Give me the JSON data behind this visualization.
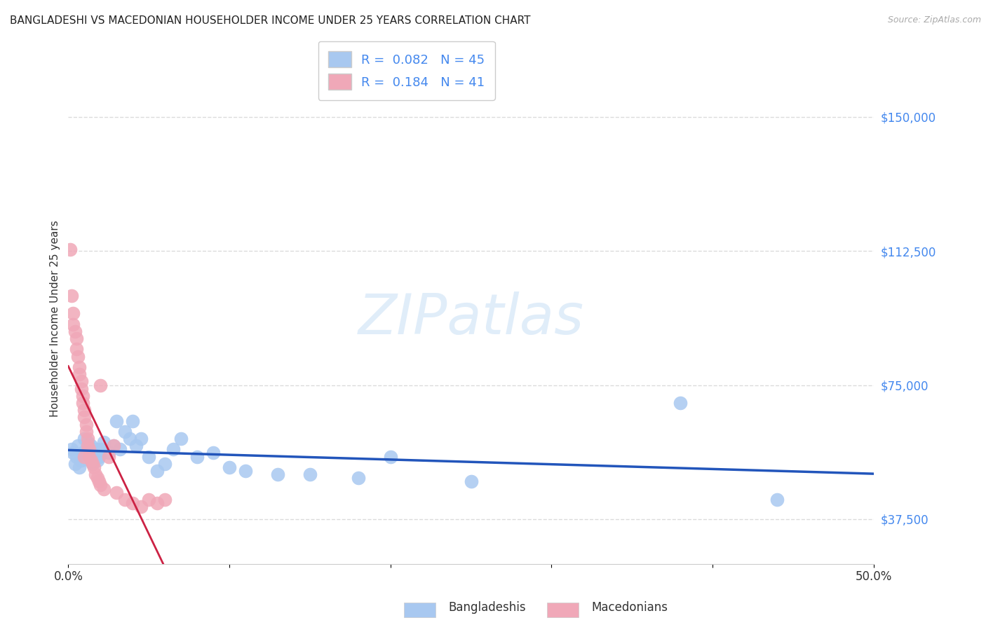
{
  "title": "BANGLADESHI VS MACEDONIAN HOUSEHOLDER INCOME UNDER 25 YEARS CORRELATION CHART",
  "source": "Source: ZipAtlas.com",
  "ylabel": "Householder Income Under 25 years",
  "xlim": [
    0.0,
    0.5
  ],
  "ylim": [
    25000,
    162000
  ],
  "yticks": [
    37500,
    75000,
    112500,
    150000
  ],
  "ytick_labels": [
    "$37,500",
    "$75,000",
    "$112,500",
    "$150,000"
  ],
  "xticks": [
    0.0,
    0.1,
    0.2,
    0.3,
    0.4,
    0.5
  ],
  "xtick_labels": [
    "0.0%",
    "",
    "",
    "",
    "",
    "50.0%"
  ],
  "background_color": "#ffffff",
  "grid_color": "#cccccc",
  "bangladeshi_color": "#a8c8f0",
  "macedonian_color": "#f0a8b8",
  "bangladeshi_line_color": "#2255bb",
  "macedonian_line_color": "#cc2244",
  "macedonian_dashed_color": "#f0a8b8",
  "legend_text_color": "#4488ee",
  "R_bangladeshi": 0.082,
  "N_bangladeshi": 45,
  "R_macedonian": 0.184,
  "N_macedonian": 41,
  "bang_x": [
    0.002,
    0.003,
    0.004,
    0.005,
    0.006,
    0.007,
    0.008,
    0.009,
    0.01,
    0.011,
    0.012,
    0.013,
    0.014,
    0.015,
    0.016,
    0.017,
    0.018,
    0.019,
    0.02,
    0.022,
    0.025,
    0.028,
    0.03,
    0.032,
    0.035,
    0.038,
    0.04,
    0.042,
    0.045,
    0.05,
    0.055,
    0.06,
    0.065,
    0.07,
    0.08,
    0.09,
    0.1,
    0.11,
    0.13,
    0.15,
    0.18,
    0.2,
    0.25,
    0.38,
    0.44
  ],
  "bang_y": [
    57000,
    56000,
    53000,
    55000,
    58000,
    52000,
    54000,
    56000,
    60000,
    57000,
    59000,
    55000,
    58000,
    53000,
    56000,
    57000,
    54000,
    55000,
    57000,
    59000,
    56000,
    58000,
    65000,
    57000,
    62000,
    60000,
    65000,
    58000,
    60000,
    55000,
    51000,
    53000,
    57000,
    60000,
    55000,
    56000,
    52000,
    51000,
    50000,
    50000,
    49000,
    55000,
    48000,
    70000,
    43000
  ],
  "mac_x": [
    0.001,
    0.002,
    0.003,
    0.003,
    0.004,
    0.005,
    0.005,
    0.006,
    0.007,
    0.007,
    0.008,
    0.008,
    0.009,
    0.009,
    0.01,
    0.01,
    0.011,
    0.011,
    0.012,
    0.012,
    0.013,
    0.013,
    0.014,
    0.015,
    0.016,
    0.017,
    0.018,
    0.019,
    0.02,
    0.022,
    0.025,
    0.028,
    0.03,
    0.035,
    0.04,
    0.045,
    0.05,
    0.055,
    0.06,
    0.02,
    0.01
  ],
  "mac_y": [
    113000,
    100000,
    95000,
    92000,
    90000,
    88000,
    85000,
    83000,
    80000,
    78000,
    76000,
    74000,
    72000,
    70000,
    68000,
    66000,
    64000,
    62000,
    60000,
    58000,
    57000,
    55000,
    54000,
    53000,
    52000,
    50000,
    49000,
    48000,
    47000,
    46000,
    55000,
    58000,
    45000,
    43000,
    42000,
    41000,
    43000,
    42000,
    43000,
    75000,
    55000
  ]
}
